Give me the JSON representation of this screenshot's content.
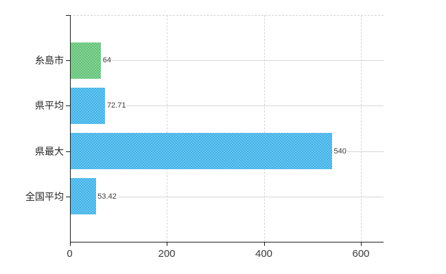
{
  "chart_data": {
    "type": "bar",
    "orientation": "horizontal",
    "title": "",
    "xlabel": "",
    "ylabel": "",
    "categories": [
      "糸島市",
      "県平均",
      "県最大",
      "全国平均"
    ],
    "values": [
      64,
      72.71,
      540,
      53.42
    ],
    "value_labels": [
      "64",
      "72.71",
      "540",
      "53.42"
    ],
    "bar_colors": [
      "#6ac97e",
      "#47b9ee",
      "#47b9ee",
      "#47b9ee"
    ],
    "x_ticks": [
      0,
      200,
      400,
      600
    ],
    "x_tick_labels": [
      "0",
      "200",
      "400",
      "600"
    ],
    "xlim": [
      0,
      646
    ],
    "grid": true,
    "legend": false,
    "axis_color": "#1c1c1c",
    "gridline_color": "#d6d6d6",
    "background_color": "#ffffff"
  }
}
